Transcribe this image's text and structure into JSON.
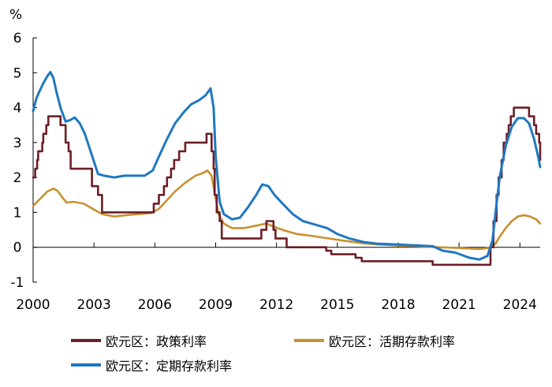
{
  "chart_data": {
    "type": "line",
    "title": "",
    "ylabel": "%",
    "xlabel": "",
    "ylim": [
      -1,
      6
    ],
    "xlim": [
      2000,
      2025
    ],
    "yticks": [
      -1,
      0,
      1,
      2,
      3,
      4,
      5,
      6
    ],
    "xticks": [
      2000,
      2003,
      2006,
      2009,
      2012,
      2015,
      2018,
      2021,
      2024
    ],
    "ytick_labels": [
      "-1",
      "0",
      "1",
      "2",
      "3",
      "4",
      "5",
      "6"
    ],
    "xtick_labels": [
      "2000",
      "2003",
      "2006",
      "2009",
      "2012",
      "2015",
      "2018",
      "2021",
      "2024"
    ],
    "grid": false,
    "legend_position": "bottom",
    "series": [
      {
        "name": "欧元区：政策利率",
        "color": "#6b1f27",
        "step": true,
        "points": [
          [
            2000.0,
            2.0
          ],
          [
            2000.1,
            2.25
          ],
          [
            2000.2,
            2.5
          ],
          [
            2000.25,
            2.75
          ],
          [
            2000.45,
            3.0
          ],
          [
            2000.5,
            3.25
          ],
          [
            2000.65,
            3.5
          ],
          [
            2000.75,
            3.75
          ],
          [
            2001.35,
            3.5
          ],
          [
            2001.6,
            3.0
          ],
          [
            2001.75,
            2.75
          ],
          [
            2001.85,
            2.25
          ],
          [
            2002.9,
            1.75
          ],
          [
            2003.2,
            1.5
          ],
          [
            2003.4,
            1.0
          ],
          [
            2005.95,
            1.25
          ],
          [
            2006.2,
            1.5
          ],
          [
            2006.45,
            1.75
          ],
          [
            2006.6,
            2.0
          ],
          [
            2006.8,
            2.25
          ],
          [
            2006.95,
            2.5
          ],
          [
            2007.2,
            2.75
          ],
          [
            2007.5,
            3.0
          ],
          [
            2008.55,
            3.25
          ],
          [
            2008.8,
            2.75
          ],
          [
            2008.9,
            2.25
          ],
          [
            2008.95,
            1.5
          ],
          [
            2009.05,
            1.0
          ],
          [
            2009.2,
            0.75
          ],
          [
            2009.3,
            0.25
          ],
          [
            2011.25,
            0.5
          ],
          [
            2011.5,
            0.75
          ],
          [
            2011.85,
            0.5
          ],
          [
            2011.95,
            0.25
          ],
          [
            2012.5,
            0.0
          ],
          [
            2014.45,
            -0.1
          ],
          [
            2014.7,
            -0.2
          ],
          [
            2015.9,
            -0.3
          ],
          [
            2016.2,
            -0.4
          ],
          [
            2019.7,
            -0.5
          ],
          [
            2022.55,
            0.0
          ],
          [
            2022.7,
            0.75
          ],
          [
            2022.85,
            1.5
          ],
          [
            2022.95,
            2.0
          ],
          [
            2023.1,
            2.5
          ],
          [
            2023.2,
            3.0
          ],
          [
            2023.35,
            3.25
          ],
          [
            2023.45,
            3.5
          ],
          [
            2023.55,
            3.75
          ],
          [
            2023.7,
            4.0
          ],
          [
            2024.45,
            3.75
          ],
          [
            2024.7,
            3.5
          ],
          [
            2024.8,
            3.25
          ],
          [
            2024.95,
            3.0
          ],
          [
            2025.0,
            2.5
          ]
        ]
      },
      {
        "name": "欧元区：活期存款利率",
        "color": "#c8902e",
        "step": false,
        "points": [
          [
            2000.0,
            1.18
          ],
          [
            2000.2,
            1.3
          ],
          [
            2000.45,
            1.45
          ],
          [
            2000.7,
            1.6
          ],
          [
            2001.0,
            1.68
          ],
          [
            2001.2,
            1.62
          ],
          [
            2001.45,
            1.42
          ],
          [
            2001.65,
            1.28
          ],
          [
            2002.0,
            1.3
          ],
          [
            2002.5,
            1.25
          ],
          [
            2003.0,
            1.08
          ],
          [
            2003.4,
            0.95
          ],
          [
            2004.0,
            0.88
          ],
          [
            2004.6,
            0.92
          ],
          [
            2005.2,
            0.95
          ],
          [
            2005.8,
            0.98
          ],
          [
            2006.2,
            1.1
          ],
          [
            2006.6,
            1.35
          ],
          [
            2007.0,
            1.6
          ],
          [
            2007.5,
            1.85
          ],
          [
            2008.0,
            2.05
          ],
          [
            2008.35,
            2.12
          ],
          [
            2008.6,
            2.2
          ],
          [
            2008.8,
            2.05
          ],
          [
            2009.0,
            1.4
          ],
          [
            2009.15,
            0.95
          ],
          [
            2009.4,
            0.68
          ],
          [
            2009.8,
            0.55
          ],
          [
            2010.4,
            0.55
          ],
          [
            2011.0,
            0.62
          ],
          [
            2011.5,
            0.68
          ],
          [
            2011.9,
            0.58
          ],
          [
            2012.4,
            0.48
          ],
          [
            2013.0,
            0.38
          ],
          [
            2013.8,
            0.32
          ],
          [
            2014.6,
            0.25
          ],
          [
            2015.4,
            0.18
          ],
          [
            2016.2,
            0.12
          ],
          [
            2017.0,
            0.08
          ],
          [
            2018.0,
            0.05
          ],
          [
            2019.0,
            0.03
          ],
          [
            2020.0,
            0.0
          ],
          [
            2021.0,
            -0.02
          ],
          [
            2022.0,
            -0.05
          ],
          [
            2022.5,
            -0.02
          ],
          [
            2022.8,
            0.1
          ],
          [
            2023.0,
            0.3
          ],
          [
            2023.3,
            0.55
          ],
          [
            2023.6,
            0.75
          ],
          [
            2023.9,
            0.88
          ],
          [
            2024.2,
            0.92
          ],
          [
            2024.5,
            0.88
          ],
          [
            2024.8,
            0.8
          ],
          [
            2025.0,
            0.68
          ]
        ]
      },
      {
        "name": "欧元区：定期存款利率",
        "color": "#1f78c1",
        "step": false,
        "points": [
          [
            2000.0,
            3.9
          ],
          [
            2000.15,
            4.25
          ],
          [
            2000.3,
            4.45
          ],
          [
            2000.5,
            4.7
          ],
          [
            2000.7,
            4.9
          ],
          [
            2000.85,
            5.02
          ],
          [
            2001.0,
            4.85
          ],
          [
            2001.15,
            4.45
          ],
          [
            2001.35,
            4.0
          ],
          [
            2001.6,
            3.6
          ],
          [
            2001.85,
            3.65
          ],
          [
            2002.05,
            3.72
          ],
          [
            2002.3,
            3.55
          ],
          [
            2002.55,
            3.25
          ],
          [
            2002.75,
            2.9
          ],
          [
            2003.0,
            2.45
          ],
          [
            2003.2,
            2.1
          ],
          [
            2003.5,
            2.05
          ],
          [
            2004.0,
            2.0
          ],
          [
            2004.5,
            2.05
          ],
          [
            2005.0,
            2.05
          ],
          [
            2005.5,
            2.05
          ],
          [
            2005.9,
            2.2
          ],
          [
            2006.2,
            2.6
          ],
          [
            2006.6,
            3.1
          ],
          [
            2007.0,
            3.55
          ],
          [
            2007.4,
            3.85
          ],
          [
            2007.8,
            4.1
          ],
          [
            2008.15,
            4.2
          ],
          [
            2008.5,
            4.35
          ],
          [
            2008.75,
            4.55
          ],
          [
            2008.9,
            4.0
          ],
          [
            2009.0,
            2.6
          ],
          [
            2009.2,
            1.3
          ],
          [
            2009.4,
            0.95
          ],
          [
            2009.8,
            0.8
          ],
          [
            2010.2,
            0.85
          ],
          [
            2010.6,
            1.15
          ],
          [
            2011.0,
            1.5
          ],
          [
            2011.3,
            1.8
          ],
          [
            2011.6,
            1.75
          ],
          [
            2011.9,
            1.5
          ],
          [
            2012.3,
            1.25
          ],
          [
            2012.8,
            0.95
          ],
          [
            2013.3,
            0.75
          ],
          [
            2013.9,
            0.65
          ],
          [
            2014.5,
            0.55
          ],
          [
            2015.0,
            0.38
          ],
          [
            2015.6,
            0.25
          ],
          [
            2016.3,
            0.15
          ],
          [
            2017.0,
            0.1
          ],
          [
            2018.0,
            0.08
          ],
          [
            2019.0,
            0.05
          ],
          [
            2019.7,
            0.03
          ],
          [
            2020.2,
            -0.1
          ],
          [
            2020.8,
            -0.15
          ],
          [
            2021.5,
            -0.3
          ],
          [
            2022.0,
            -0.35
          ],
          [
            2022.4,
            -0.25
          ],
          [
            2022.65,
            0.2
          ],
          [
            2022.8,
            1.0
          ],
          [
            2023.0,
            2.0
          ],
          [
            2023.3,
            2.9
          ],
          [
            2023.6,
            3.45
          ],
          [
            2023.9,
            3.7
          ],
          [
            2024.2,
            3.7
          ],
          [
            2024.45,
            3.55
          ],
          [
            2024.7,
            3.1
          ],
          [
            2024.9,
            2.6
          ],
          [
            2025.0,
            2.3
          ]
        ]
      }
    ]
  }
}
